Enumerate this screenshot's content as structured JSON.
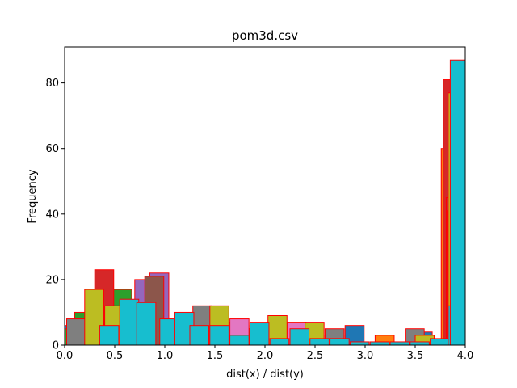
{
  "chart_data": {
    "type": "bar",
    "title": "pom3d.csv",
    "xlabel": "dist(x) / dist(y)",
    "ylabel": "Frequency",
    "xlim": [
      0.0,
      4.0
    ],
    "ylim": [
      0,
      91
    ],
    "x_ticks": [
      "0.0",
      "0.5",
      "1.0",
      "1.5",
      "2.0",
      "2.5",
      "3.0",
      "3.5",
      "4.0"
    ],
    "y_ticks": [
      "0",
      "20",
      "40",
      "60",
      "80"
    ],
    "edge_color": "#ff0000",
    "grid": false,
    "legend": "none",
    "series": [
      {
        "color": "#1f77b4",
        "bars": [
          [
            0.0,
            0.19,
            6
          ],
          [
            0.19,
            0.38,
            7
          ],
          [
            1.7,
            1.89,
            5
          ],
          [
            2.8,
            2.99,
            6
          ],
          [
            3.48,
            3.67,
            4
          ]
        ]
      },
      {
        "color": "#ff7f0e",
        "bars": [
          [
            0.6,
            0.79,
            4
          ],
          [
            2.15,
            2.34,
            3
          ],
          [
            3.1,
            3.29,
            3
          ],
          [
            3.76,
            3.95,
            60
          ]
        ]
      },
      {
        "color": "#2ca02c",
        "bars": [
          [
            0.0,
            0.19,
            5
          ],
          [
            0.1,
            0.29,
            10
          ],
          [
            0.48,
            0.67,
            17
          ]
        ]
      },
      {
        "color": "#d62728",
        "bars": [
          [
            0.3,
            0.49,
            23
          ],
          [
            0.88,
            1.07,
            4
          ],
          [
            3.78,
            3.97,
            81
          ],
          [
            3.81,
            3.84,
            45
          ]
        ]
      },
      {
        "color": "#9467bd",
        "bars": [
          [
            0.7,
            0.89,
            20
          ],
          [
            0.85,
            1.04,
            22
          ],
          [
            1.6,
            1.79,
            7
          ],
          [
            2.6,
            2.79,
            3
          ]
        ]
      },
      {
        "color": "#8c564b",
        "bars": [
          [
            0.8,
            0.99,
            21
          ],
          [
            1.8,
            1.99,
            5
          ],
          [
            3.82,
            4.0,
            41
          ]
        ]
      },
      {
        "color": "#e377c2",
        "bars": [
          [
            0.5,
            0.69,
            5
          ],
          [
            1.28,
            1.47,
            9
          ],
          [
            1.65,
            1.84,
            8
          ],
          [
            2.22,
            2.41,
            7
          ]
        ]
      },
      {
        "color": "#7f7f7f",
        "bars": [
          [
            0.02,
            0.21,
            8
          ],
          [
            1.28,
            1.47,
            12
          ],
          [
            1.85,
            2.04,
            6
          ],
          [
            2.6,
            2.79,
            5
          ],
          [
            3.4,
            3.59,
            5
          ],
          [
            3.83,
            4.0,
            25
          ]
        ]
      },
      {
        "color": "#bcbd22",
        "bars": [
          [
            0.2,
            0.39,
            17
          ],
          [
            0.4,
            0.59,
            12
          ],
          [
            1.45,
            1.64,
            12
          ],
          [
            2.03,
            2.22,
            9
          ],
          [
            2.4,
            2.59,
            7
          ],
          [
            3.5,
            3.69,
            3
          ],
          [
            3.83,
            4.0,
            77
          ]
        ]
      },
      {
        "color": "#17becf",
        "bars": [
          [
            0.35,
            0.54,
            6
          ],
          [
            0.55,
            0.74,
            14
          ],
          [
            0.72,
            0.91,
            13
          ],
          [
            0.95,
            1.14,
            8
          ],
          [
            1.1,
            1.29,
            10
          ],
          [
            1.25,
            1.44,
            6
          ],
          [
            1.45,
            1.64,
            6
          ],
          [
            1.65,
            1.84,
            3
          ],
          [
            1.85,
            2.04,
            7
          ],
          [
            2.05,
            2.24,
            2
          ],
          [
            2.25,
            2.44,
            5
          ],
          [
            2.45,
            2.64,
            2
          ],
          [
            2.65,
            2.84,
            2
          ],
          [
            2.85,
            3.04,
            1
          ],
          [
            3.05,
            3.24,
            1
          ],
          [
            3.25,
            3.44,
            1
          ],
          [
            3.45,
            3.64,
            1
          ],
          [
            3.65,
            3.84,
            2
          ],
          [
            3.83,
            4.0,
            12
          ],
          [
            3.85,
            4.0,
            87
          ]
        ]
      }
    ]
  }
}
